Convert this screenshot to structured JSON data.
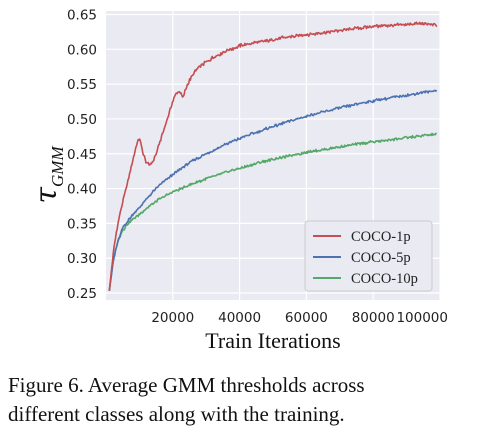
{
  "chart_data": {
    "type": "line",
    "xlabel": "Train Iterations",
    "ylabel_main": "τ",
    "ylabel_sub": "GMM",
    "xlim": [
      0,
      100000
    ],
    "ylim": [
      0.24,
      0.655
    ],
    "xticks": [
      20000,
      40000,
      60000,
      80000,
      100000
    ],
    "xtick_labels": [
      "20000",
      "40000",
      "60000",
      "80000",
      "100000"
    ],
    "yticks": [
      0.25,
      0.3,
      0.35,
      0.4,
      0.45,
      0.5,
      0.55,
      0.6,
      0.65
    ],
    "ytick_labels": [
      "0.25",
      "0.30",
      "0.35",
      "0.40",
      "0.45",
      "0.50",
      "0.55",
      "0.60",
      "0.65"
    ],
    "grid": true,
    "legend_position": "lower-right",
    "series": [
      {
        "name": "COCO-1p",
        "color": "#c44e52",
        "x": [
          1000,
          2000,
          3000,
          4000,
          5000,
          6000,
          7000,
          8000,
          9000,
          10000,
          11000,
          12000,
          13000,
          14000,
          15000,
          16000,
          17000,
          18000,
          19000,
          20000,
          21000,
          22000,
          23000,
          24000,
          25000,
          26000,
          27000,
          28000,
          30000,
          32000,
          34000,
          36000,
          38000,
          40000,
          42000,
          45000,
          48000,
          50000,
          55000,
          60000,
          65000,
          70000,
          75000,
          80000,
          85000,
          90000,
          95000,
          99000
        ],
        "y": [
          0.253,
          0.3,
          0.335,
          0.36,
          0.38,
          0.4,
          0.42,
          0.44,
          0.46,
          0.473,
          0.452,
          0.438,
          0.434,
          0.438,
          0.45,
          0.465,
          0.48,
          0.495,
          0.51,
          0.525,
          0.537,
          0.54,
          0.53,
          0.545,
          0.555,
          0.563,
          0.57,
          0.575,
          0.582,
          0.588,
          0.593,
          0.598,
          0.601,
          0.605,
          0.607,
          0.61,
          0.612,
          0.614,
          0.618,
          0.621,
          0.624,
          0.627,
          0.63,
          0.633,
          0.634,
          0.636,
          0.637,
          0.635
        ]
      },
      {
        "name": "COCO-5p",
        "color": "#4c72b0",
        "x": [
          1000,
          2000,
          3000,
          4000,
          5000,
          7000,
          10000,
          13000,
          16000,
          20000,
          25000,
          30000,
          35000,
          40000,
          45000,
          50000,
          55000,
          60000,
          65000,
          70000,
          75000,
          80000,
          85000,
          90000,
          95000,
          99000
        ],
        "y": [
          0.253,
          0.29,
          0.315,
          0.33,
          0.343,
          0.357,
          0.373,
          0.39,
          0.405,
          0.42,
          0.437,
          0.45,
          0.462,
          0.472,
          0.481,
          0.489,
          0.497,
          0.504,
          0.51,
          0.516,
          0.521,
          0.526,
          0.53,
          0.534,
          0.538,
          0.541
        ]
      },
      {
        "name": "COCO-10p",
        "color": "#55a868",
        "x": [
          1000,
          2000,
          3000,
          4000,
          5000,
          7000,
          10000,
          13000,
          16000,
          20000,
          25000,
          30000,
          35000,
          40000,
          45000,
          50000,
          55000,
          60000,
          65000,
          70000,
          75000,
          80000,
          85000,
          90000,
          95000,
          99000
        ],
        "y": [
          0.253,
          0.29,
          0.315,
          0.33,
          0.34,
          0.352,
          0.363,
          0.375,
          0.385,
          0.395,
          0.405,
          0.414,
          0.422,
          0.429,
          0.436,
          0.442,
          0.447,
          0.452,
          0.456,
          0.46,
          0.464,
          0.467,
          0.47,
          0.473,
          0.476,
          0.478
        ]
      }
    ]
  },
  "caption": {
    "line1": "Figure 6.  Average GMM thresholds across",
    "line2": "different classes along with the training."
  }
}
